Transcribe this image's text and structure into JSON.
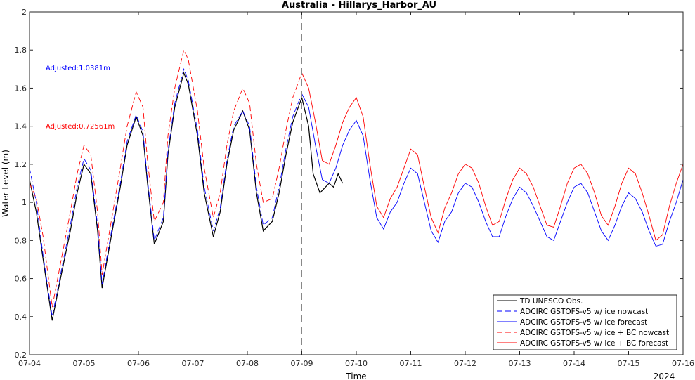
{
  "chart_data": {
    "type": "line",
    "title": "Australia - Hillarys_Harbor_AU",
    "xlabel": "Time",
    "ylabel": "Water Level (m)",
    "year_label": "2024",
    "xlim": [
      "07-04",
      "07-16"
    ],
    "ylim": [
      0.2,
      2.0
    ],
    "x_ticks": [
      "07-04",
      "07-05",
      "07-06",
      "07-07",
      "07-08",
      "07-09",
      "07-10",
      "07-11",
      "07-12",
      "07-13",
      "07-14",
      "07-15",
      "07-16"
    ],
    "y_ticks": [
      "0.2",
      "0.4",
      "0.6",
      "0.8",
      "1",
      "1.2",
      "1.4",
      "1.6",
      "1.8",
      "2"
    ],
    "forecast_start": "07-09",
    "grid": false,
    "legend_position": "bottom-right",
    "annotations": [
      {
        "text": "Adjusted:1.0381m",
        "color": "#0000ff"
      },
      {
        "text": "Adjusted:0.72561m",
        "color": "#ff0000"
      }
    ],
    "series": [
      {
        "name": "TD UNESCO Obs.",
        "color": "#000000",
        "dash": "solid",
        "x": [
          "07-04 00:00",
          "07-04 03:00",
          "07-04 06:00",
          "07-04 10:00",
          "07-04 14:00",
          "07-04 18:00",
          "07-04 21:00",
          "07-05 00:00",
          "07-05 03:00",
          "07-05 06:00",
          "07-05 08:00",
          "07-05 12:00",
          "07-05 16:00",
          "07-05 19:00",
          "07-05 23:00",
          "07-06 02:00",
          "07-06 04:00",
          "07-06 07:00",
          "07-06 11:00",
          "07-06 13:00",
          "07-06 16:00",
          "07-06 20:00",
          "07-06 22:00",
          "07-07 02:00",
          "07-07 05:00",
          "07-07 09:00",
          "07-07 12:00",
          "07-07 15:00",
          "07-07 18:00",
          "07-07 22:00",
          "07-08 01:00",
          "07-08 04:00",
          "07-08 07:00",
          "07-08 11:00",
          "07-08 14:00",
          "07-08 17:00",
          "07-08 20:00",
          "07-09 00:00",
          "07-09 03:00",
          "07-09 05:00",
          "07-09 08:00",
          "07-09 12:00",
          "07-09 14:00",
          "07-09 16:00",
          "07-09 18:00"
        ],
        "y": [
          1.12,
          0.95,
          0.7,
          0.38,
          0.62,
          0.85,
          1.05,
          1.2,
          1.15,
          0.85,
          0.55,
          0.82,
          1.08,
          1.3,
          1.45,
          1.35,
          1.1,
          0.78,
          0.9,
          1.25,
          1.5,
          1.68,
          1.62,
          1.35,
          1.05,
          0.82,
          0.95,
          1.2,
          1.38,
          1.48,
          1.38,
          1.05,
          0.85,
          0.9,
          1.05,
          1.25,
          1.42,
          1.55,
          1.4,
          1.15,
          1.05,
          1.1,
          1.08,
          1.15,
          1.1
        ]
      },
      {
        "name": "ADCIRC GSTOFS-v5 w/ ice nowcast",
        "color": "#0000ff",
        "dash": "dashed",
        "x": [
          "07-04 00:00",
          "07-04 03:00",
          "07-04 06:00",
          "07-04 10:00",
          "07-04 14:00",
          "07-04 18:00",
          "07-04 21:00",
          "07-05 00:00",
          "07-05 03:00",
          "07-05 06:00",
          "07-05 08:00",
          "07-05 12:00",
          "07-05 16:00",
          "07-05 19:00",
          "07-05 23:00",
          "07-06 02:00",
          "07-06 04:00",
          "07-06 07:00",
          "07-06 11:00",
          "07-06 13:00",
          "07-06 16:00",
          "07-06 20:00",
          "07-06 22:00",
          "07-07 02:00",
          "07-07 05:00",
          "07-07 09:00",
          "07-07 12:00",
          "07-07 15:00",
          "07-07 18:00",
          "07-07 22:00",
          "07-08 01:00",
          "07-08 04:00",
          "07-08 07:00",
          "07-08 11:00",
          "07-08 14:00",
          "07-08 17:00",
          "07-08 20:00",
          "07-09 00:00"
        ],
        "y": [
          1.18,
          1.0,
          0.72,
          0.4,
          0.64,
          0.88,
          1.08,
          1.23,
          1.17,
          0.88,
          0.57,
          0.84,
          1.1,
          1.32,
          1.46,
          1.37,
          1.12,
          0.8,
          0.92,
          1.27,
          1.52,
          1.7,
          1.64,
          1.38,
          1.08,
          0.85,
          0.97,
          1.22,
          1.4,
          1.48,
          1.4,
          1.08,
          0.88,
          0.92,
          1.08,
          1.28,
          1.45,
          1.57
        ]
      },
      {
        "name": "ADCIRC GSTOFS-v5 w/ ice forecast",
        "color": "#0000ff",
        "dash": "solid",
        "x": [
          "07-09 00:00",
          "07-09 03:00",
          "07-09 06:00",
          "07-09 09:00",
          "07-09 12:00",
          "07-09 15:00",
          "07-09 18:00",
          "07-09 21:00",
          "07-10 00:00",
          "07-10 03:00",
          "07-10 06:00",
          "07-10 09:00",
          "07-10 12:00",
          "07-10 15:00",
          "07-10 18:00",
          "07-10 21:00",
          "07-11 00:00",
          "07-11 03:00",
          "07-11 06:00",
          "07-11 09:00",
          "07-11 12:00",
          "07-11 15:00",
          "07-11 18:00",
          "07-11 21:00",
          "07-12 00:00",
          "07-12 03:00",
          "07-12 06:00",
          "07-12 09:00",
          "07-12 12:00",
          "07-12 15:00",
          "07-12 18:00",
          "07-12 21:00",
          "07-13 00:00",
          "07-13 03:00",
          "07-13 06:00",
          "07-13 09:00",
          "07-13 12:00",
          "07-13 15:00",
          "07-13 18:00",
          "07-13 21:00",
          "07-14 00:00",
          "07-14 03:00",
          "07-14 06:00",
          "07-14 09:00",
          "07-14 12:00",
          "07-14 15:00",
          "07-14 18:00",
          "07-14 21:00",
          "07-15 00:00",
          "07-15 03:00",
          "07-15 06:00",
          "07-15 09:00",
          "07-15 12:00",
          "07-15 15:00",
          "07-15 18:00",
          "07-15 21:00",
          "07-16 00:00"
        ],
        "y": [
          1.57,
          1.5,
          1.3,
          1.12,
          1.1,
          1.18,
          1.3,
          1.38,
          1.43,
          1.35,
          1.12,
          0.92,
          0.86,
          0.95,
          1.0,
          1.1,
          1.18,
          1.15,
          1.0,
          0.85,
          0.79,
          0.9,
          0.95,
          1.05,
          1.1,
          1.08,
          1.0,
          0.9,
          0.82,
          0.82,
          0.93,
          1.02,
          1.08,
          1.05,
          0.98,
          0.9,
          0.82,
          0.8,
          0.9,
          1.0,
          1.08,
          1.1,
          1.05,
          0.95,
          0.85,
          0.8,
          0.88,
          0.98,
          1.05,
          1.02,
          0.95,
          0.85,
          0.77,
          0.78,
          0.9,
          1.0,
          1.12
        ]
      },
      {
        "name": "ADCIRC GSTOFS-v5 w/ ice + BC nowcast",
        "color": "#ff0000",
        "dash": "dashed",
        "x": [
          "07-04 00:00",
          "07-04 03:00",
          "07-04 06:00",
          "07-04 10:00",
          "07-04 14:00",
          "07-04 18:00",
          "07-04 21:00",
          "07-05 00:00",
          "07-05 03:00",
          "07-05 06:00",
          "07-05 08:00",
          "07-05 12:00",
          "07-05 16:00",
          "07-05 19:00",
          "07-05 23:00",
          "07-06 02:00",
          "07-06 04:00",
          "07-06 07:00",
          "07-06 11:00",
          "07-06 13:00",
          "07-06 16:00",
          "07-06 20:00",
          "07-06 22:00",
          "07-07 02:00",
          "07-07 05:00",
          "07-07 09:00",
          "07-07 12:00",
          "07-07 15:00",
          "07-07 18:00",
          "07-07 22:00",
          "07-08 01:00",
          "07-08 04:00",
          "07-08 07:00",
          "07-08 11:00",
          "07-08 14:00",
          "07-08 17:00",
          "07-08 20:00",
          "07-09 00:00"
        ],
        "y": [
          1.1,
          1.02,
          0.82,
          0.45,
          0.7,
          0.95,
          1.15,
          1.3,
          1.25,
          0.95,
          0.62,
          0.9,
          1.18,
          1.4,
          1.58,
          1.5,
          1.22,
          0.9,
          1.0,
          1.35,
          1.6,
          1.8,
          1.75,
          1.48,
          1.18,
          0.92,
          1.05,
          1.3,
          1.48,
          1.6,
          1.52,
          1.2,
          1.0,
          1.02,
          1.18,
          1.38,
          1.55,
          1.68
        ]
      },
      {
        "name": "ADCIRC GSTOFS-v5 w/ ice + BC forecast",
        "color": "#ff0000",
        "dash": "solid",
        "x": [
          "07-09 00:00",
          "07-09 03:00",
          "07-09 06:00",
          "07-09 09:00",
          "07-09 12:00",
          "07-09 15:00",
          "07-09 18:00",
          "07-09 21:00",
          "07-10 00:00",
          "07-10 03:00",
          "07-10 06:00",
          "07-10 09:00",
          "07-10 12:00",
          "07-10 15:00",
          "07-10 18:00",
          "07-10 21:00",
          "07-11 00:00",
          "07-11 03:00",
          "07-11 06:00",
          "07-11 09:00",
          "07-11 12:00",
          "07-11 15:00",
          "07-11 18:00",
          "07-11 21:00",
          "07-12 00:00",
          "07-12 03:00",
          "07-12 06:00",
          "07-12 09:00",
          "07-12 12:00",
          "07-12 15:00",
          "07-12 18:00",
          "07-12 21:00",
          "07-13 00:00",
          "07-13 03:00",
          "07-13 06:00",
          "07-13 09:00",
          "07-13 12:00",
          "07-13 15:00",
          "07-13 18:00",
          "07-13 21:00",
          "07-14 00:00",
          "07-14 03:00",
          "07-14 06:00",
          "07-14 09:00",
          "07-14 12:00",
          "07-14 15:00",
          "07-14 18:00",
          "07-14 21:00",
          "07-15 00:00",
          "07-15 03:00",
          "07-15 06:00",
          "07-15 09:00",
          "07-15 12:00",
          "07-15 15:00",
          "07-15 18:00",
          "07-15 21:00",
          "07-16 00:00"
        ],
        "y": [
          1.68,
          1.6,
          1.42,
          1.22,
          1.2,
          1.3,
          1.42,
          1.5,
          1.55,
          1.45,
          1.2,
          0.98,
          0.92,
          1.02,
          1.08,
          1.18,
          1.28,
          1.25,
          1.08,
          0.92,
          0.84,
          0.97,
          1.05,
          1.15,
          1.2,
          1.18,
          1.1,
          0.98,
          0.88,
          0.9,
          1.02,
          1.12,
          1.18,
          1.15,
          1.08,
          0.98,
          0.88,
          0.87,
          0.98,
          1.1,
          1.18,
          1.2,
          1.15,
          1.05,
          0.93,
          0.88,
          0.98,
          1.1,
          1.18,
          1.15,
          1.05,
          0.93,
          0.8,
          0.83,
          0.98,
          1.1,
          1.2
        ]
      }
    ]
  }
}
